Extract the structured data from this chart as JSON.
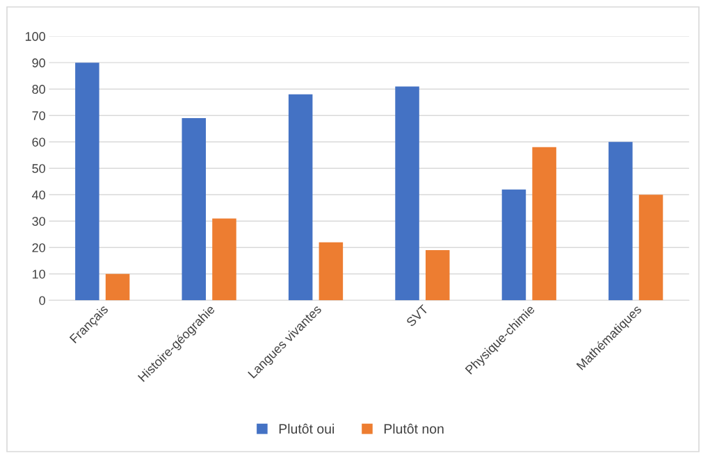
{
  "chart_data": {
    "type": "bar",
    "categories": [
      "Français",
      "Histoire-géograhie",
      "Langues vivantes",
      "SVT",
      "Physique-chimie",
      "Mathématiques"
    ],
    "series": [
      {
        "name": "Plutôt oui",
        "color": "#4472c4",
        "values": [
          90,
          69,
          78,
          81,
          42,
          60
        ]
      },
      {
        "name": "Plutôt non",
        "color": "#ed7d31",
        "values": [
          10,
          31,
          22,
          19,
          58,
          40
        ]
      }
    ],
    "ylim": [
      0,
      100
    ],
    "yticks": [
      0,
      10,
      20,
      30,
      40,
      50,
      60,
      70,
      80,
      90,
      100
    ],
    "grid": "y",
    "legend": "bottom"
  }
}
